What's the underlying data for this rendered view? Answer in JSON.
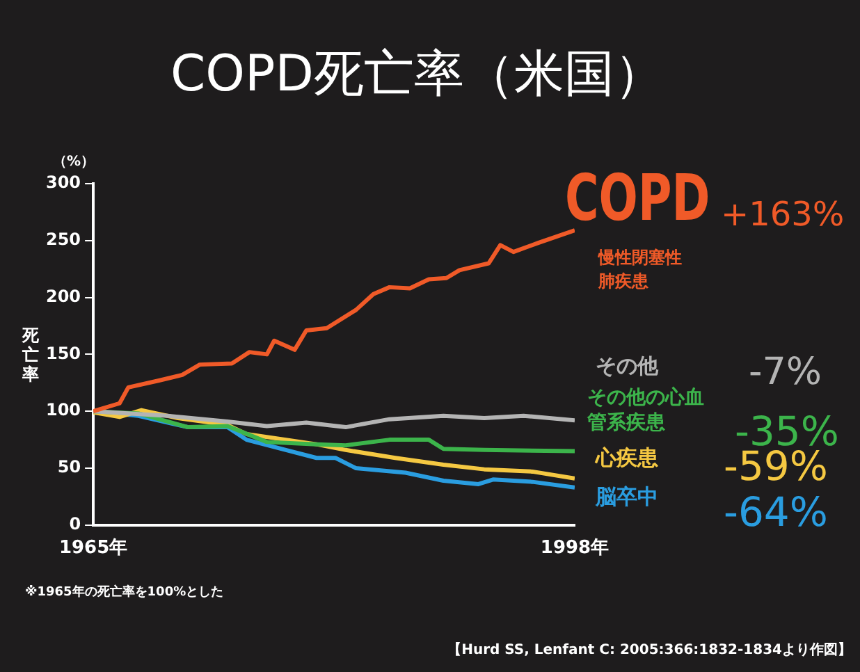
{
  "chart_data": {
    "type": "line",
    "title": "COPD死亡率（米国）",
    "ylabel": "死亡率",
    "xlim": [
      1965,
      1998
    ],
    "xticks": [
      {
        "value": 1965,
        "label": "1965年"
      },
      {
        "value": 1998,
        "label": "1998年"
      }
    ],
    "ylim": [
      0,
      300
    ],
    "yticks": [
      0,
      50,
      100,
      150,
      200,
      250,
      300
    ],
    "grid": false,
    "legend": false,
    "marker": "none",
    "line_style": "solid",
    "series": [
      {
        "name": "COPD",
        "color": "#f05a28",
        "x": [
          1965,
          1966.8,
          1967.4,
          1969.5,
          1971.1,
          1972.3,
          1974.5,
          1975.7,
          1976.9,
          1977.4,
          1978.8,
          1979.6,
          1981,
          1983,
          1984.2,
          1985.3,
          1986.7,
          1988,
          1989.2,
          1990.1,
          1992.1,
          1992.9,
          1993.8,
          1995.5,
          1998
        ],
        "values": [
          100,
          107,
          121,
          127,
          132,
          141,
          142,
          152,
          150,
          162,
          154,
          171,
          173,
          189,
          203,
          209,
          208,
          216,
          217,
          224,
          230,
          246,
          240,
          248,
          259
        ]
      },
      {
        "name": "その他",
        "color": "#b4b4b4",
        "x": [
          1965,
          1970.1,
          1974.2,
          1976.9,
          1979.6,
          1982.3,
          1985.3,
          1989,
          1991.8,
          1994.5,
          1998
        ],
        "values": [
          100,
          96,
          91,
          87,
          90,
          86,
          93,
          96,
          94,
          96,
          92
        ]
      },
      {
        "name": "その他の心血管系疾患",
        "color": "#3cb44b",
        "x": [
          1965,
          1968.1,
          1971.5,
          1974.2,
          1976.9,
          1980.3,
          1982.3,
          1985.3,
          1988,
          1989,
          1991.8,
          1998
        ],
        "values": [
          100,
          98,
          86,
          87,
          73,
          71,
          70,
          75,
          75,
          67,
          66,
          65
        ]
      },
      {
        "name": "心疾患",
        "color": "#f5c842",
        "x": [
          1965,
          1966.8,
          1968.3,
          1970.8,
          1974.2,
          1975.5,
          1978.2,
          1980.3,
          1982.3,
          1985.7,
          1989,
          1991.8,
          1995.1,
          1998
        ],
        "values": [
          99,
          95,
          101,
          94,
          88,
          80,
          75,
          71,
          66,
          59,
          53,
          49,
          47,
          41
        ]
      },
      {
        "name": "脳卒中",
        "color": "#2a9de0",
        "x": [
          1965,
          1968.1,
          1971.5,
          1974.2,
          1975.5,
          1978.2,
          1980.3,
          1981.6,
          1983,
          1986.4,
          1989,
          1991.4,
          1992.4,
          1995.1,
          1998
        ],
        "values": [
          100,
          96,
          86,
          86,
          75,
          66,
          59,
          59,
          50,
          46,
          39,
          36,
          40,
          38,
          33
        ]
      }
    ],
    "annotations": [
      "+163%",
      "慢性閉塞性肺疾患",
      "-7%",
      "-35%",
      "-59%",
      "-64%",
      "（%）",
      "※1965年の死亡率を100%とした",
      "【Hurd SS, Lenfant C: 2005:366:1832-1834より作図】"
    ]
  }
}
